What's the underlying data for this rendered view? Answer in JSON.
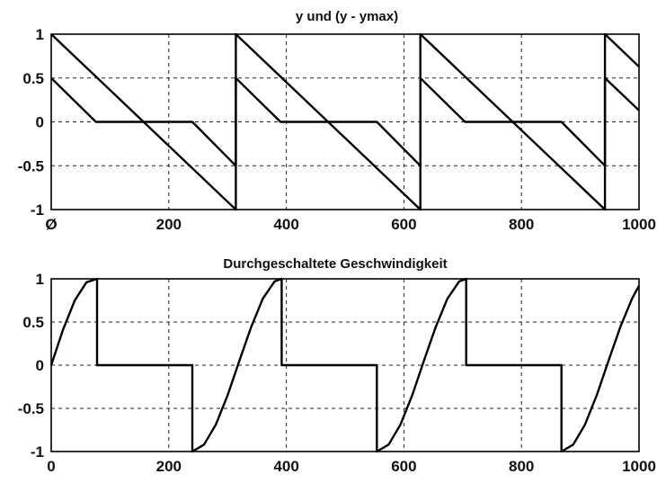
{
  "chart_data": [
    {
      "type": "line",
      "title": "y und (y - ymax)",
      "xlabel": "",
      "ylabel": "",
      "xlim": [
        0,
        1000
      ],
      "ylim": [
        -1,
        1
      ],
      "xticks": [
        0,
        200,
        400,
        600,
        800,
        1000
      ],
      "xtick_labels": [
        "Ø",
        "200",
        "400",
        "600",
        "800",
        "1000"
      ],
      "yticks": [
        1,
        0.5,
        0,
        -0.5,
        -1
      ],
      "ytick_labels": [
        "1",
        "0.5",
        "0",
        "-0.5",
        "-1"
      ],
      "grid": true,
      "series": [
        {
          "x": [
            0,
            314,
            314,
            628,
            628,
            942,
            942,
            1000
          ],
          "y": [
            1,
            -1,
            1,
            -1,
            1,
            -1,
            1,
            0.63
          ]
        },
        {
          "x": [
            0,
            76,
            240,
            314,
            314,
            390,
            554,
            628,
            628,
            704,
            868,
            942,
            942,
            1000
          ],
          "y": [
            0.5,
            0,
            0,
            -0.5,
            0.5,
            0,
            0,
            -0.5,
            0.5,
            0,
            0,
            -0.5,
            0.5,
            0.13
          ]
        }
      ]
    },
    {
      "type": "line",
      "title": "Durchgeschaltete  Geschwindigkeit",
      "xlabel": "",
      "ylabel": "",
      "xlim": [
        0,
        1000
      ],
      "ylim": [
        -1,
        1
      ],
      "xticks": [
        0,
        200,
        400,
        600,
        800,
        1000
      ],
      "xtick_labels": [
        "0",
        "200",
        "400",
        "600",
        "800",
        "1000"
      ],
      "yticks": [
        1,
        0.5,
        0,
        -0.5,
        -1
      ],
      "ytick_labels": [
        "1",
        "0.5",
        "0",
        "-0.5",
        "-1"
      ],
      "grid": true,
      "series": [
        {
          "x": [
            0,
            20,
            40,
            60,
            78,
            78,
            240,
            240,
            260,
            280,
            300,
            320,
            340,
            360,
            380,
            392,
            392,
            554,
            554,
            574,
            594,
            614,
            634,
            654,
            674,
            694,
            706,
            706,
            868,
            868,
            888,
            908,
            928,
            948,
            968,
            988,
            1000
          ],
          "y": [
            0,
            0.41,
            0.75,
            0.96,
            1,
            0,
            0,
            -1,
            -0.92,
            -0.69,
            -0.35,
            0.05,
            0.44,
            0.77,
            0.97,
            1,
            0,
            0,
            -1,
            -0.92,
            -0.69,
            -0.35,
            0.05,
            0.44,
            0.77,
            0.97,
            1,
            0,
            0,
            -1,
            -0.92,
            -0.69,
            -0.35,
            0.05,
            0.44,
            0.77,
            0.92
          ]
        }
      ]
    }
  ]
}
